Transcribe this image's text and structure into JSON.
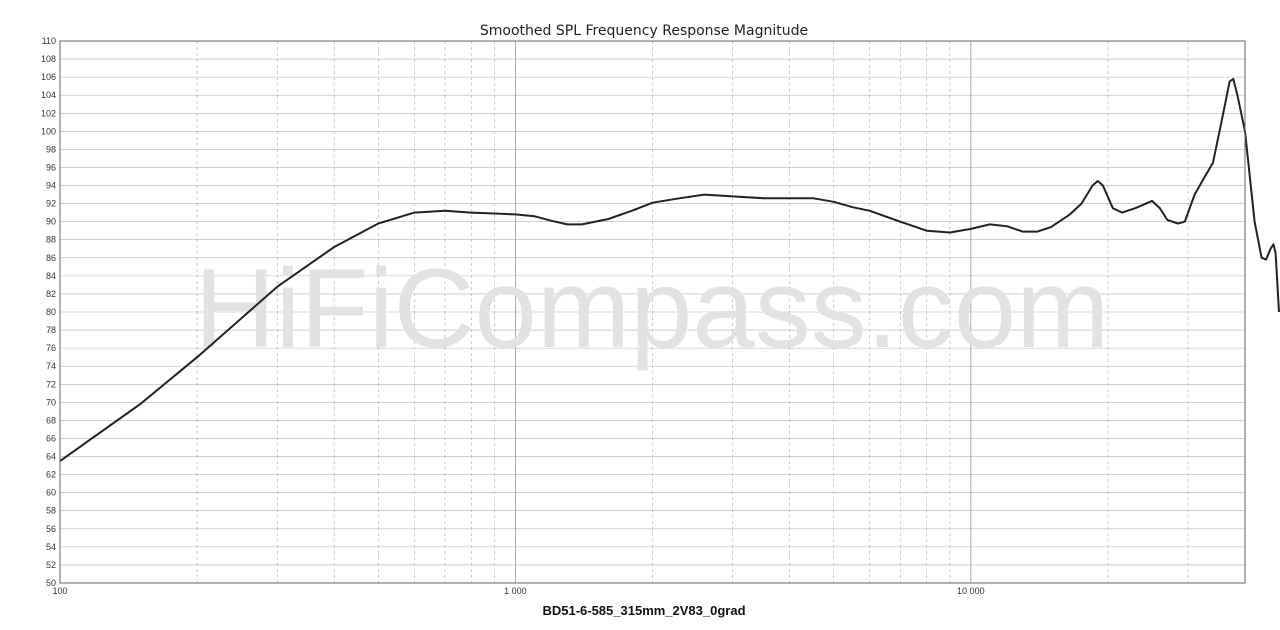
{
  "chart_data": {
    "type": "line",
    "title": "Smoothed SPL Frequency Response Magnitude",
    "xlabel": "BD51-6-585_315mm_2V83_0grad",
    "ylabel": "",
    "x_scale": "log",
    "xlim": [
      100,
      40000
    ],
    "ylim": [
      50,
      110
    ],
    "grid": true,
    "watermark": "HiFiCompass.com",
    "x_ticks": [
      {
        "value": 100,
        "label": "100"
      },
      {
        "value": 1000,
        "label": "1 000"
      },
      {
        "value": 10000,
        "label": "10 000"
      }
    ],
    "y_ticks": [
      50,
      52,
      54,
      56,
      58,
      60,
      62,
      64,
      66,
      68,
      70,
      72,
      74,
      76,
      78,
      80,
      82,
      84,
      86,
      88,
      90,
      92,
      94,
      96,
      98,
      100,
      102,
      104,
      106,
      108,
      110
    ],
    "series": [
      {
        "points": [
          [
            100,
            63.5
          ],
          [
            150,
            69.8
          ],
          [
            200,
            75.0
          ],
          [
            300,
            82.8
          ],
          [
            400,
            87.2
          ],
          [
            500,
            89.8
          ],
          [
            600,
            91.0
          ],
          [
            700,
            91.2
          ],
          [
            800,
            91.0
          ],
          [
            900,
            90.9
          ],
          [
            1000,
            90.8
          ],
          [
            1100,
            90.6
          ],
          [
            1200,
            90.1
          ],
          [
            1300,
            89.7
          ],
          [
            1400,
            89.7
          ],
          [
            1600,
            90.3
          ],
          [
            1800,
            91.2
          ],
          [
            2000,
            92.1
          ],
          [
            2300,
            92.6
          ],
          [
            2600,
            93.0
          ],
          [
            3000,
            92.8
          ],
          [
            3500,
            92.6
          ],
          [
            4000,
            92.6
          ],
          [
            4500,
            92.6
          ],
          [
            5000,
            92.2
          ],
          [
            5500,
            91.6
          ],
          [
            6000,
            91.2
          ],
          [
            7000,
            90.0
          ],
          [
            8000,
            89.0
          ],
          [
            9000,
            88.8
          ],
          [
            10000,
            89.2
          ],
          [
            11000,
            89.7
          ],
          [
            12000,
            89.5
          ],
          [
            13000,
            88.9
          ],
          [
            14000,
            88.9
          ],
          [
            15000,
            89.4
          ],
          [
            16500,
            90.8
          ],
          [
            17500,
            92.0
          ],
          [
            18500,
            94.0
          ],
          [
            19000,
            94.5
          ],
          [
            19500,
            94.0
          ],
          [
            20500,
            91.5
          ],
          [
            21500,
            91.0
          ],
          [
            23000,
            91.5
          ],
          [
            25000,
            92.3
          ],
          [
            26000,
            91.5
          ],
          [
            27000,
            90.2
          ],
          [
            28500,
            89.8
          ],
          [
            29500,
            90.0
          ],
          [
            31000,
            93.0
          ],
          [
            32500,
            94.8
          ],
          [
            34000,
            96.5
          ],
          [
            35500,
            101.0
          ],
          [
            37000,
            105.5
          ],
          [
            37700,
            105.8
          ],
          [
            38500,
            104.0
          ],
          [
            40000,
            100.0
          ],
          [
            42000,
            90.0
          ],
          [
            43500,
            86.0
          ],
          [
            44500,
            85.8
          ],
          [
            45500,
            87.0
          ],
          [
            46200,
            87.5
          ],
          [
            46700,
            86.5
          ],
          [
            47500,
            80.0
          ]
        ]
      }
    ]
  }
}
